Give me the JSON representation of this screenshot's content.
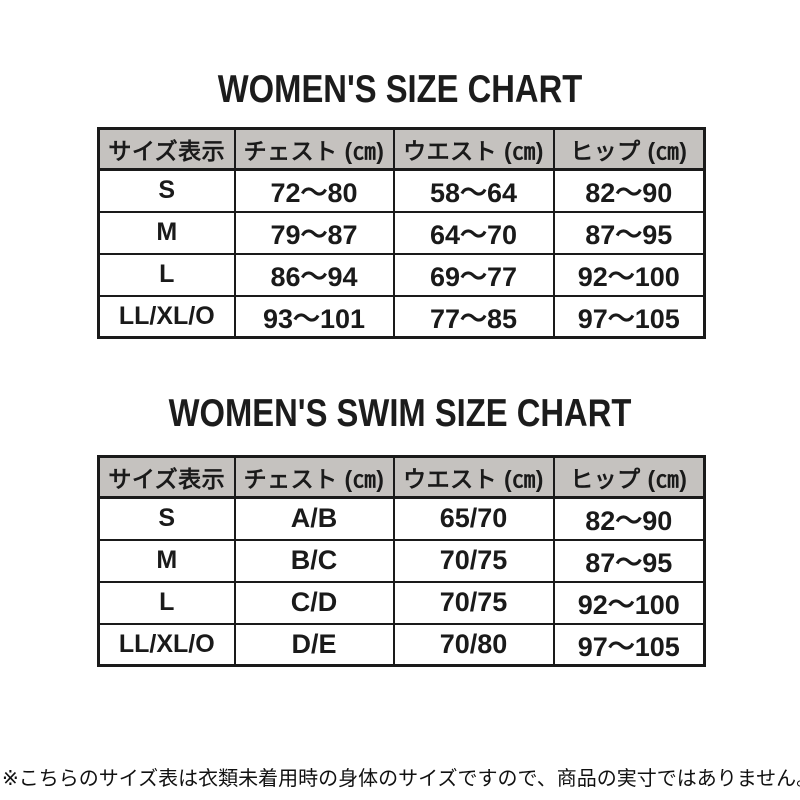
{
  "colors": {
    "background": "#ffffff",
    "text": "#1a1a1a",
    "table_border": "#1a1a1a",
    "header_row_bg": "#c5c2bf"
  },
  "size_chart": {
    "title": "WOMEN'S SIZE CHART",
    "headers": [
      "サイズ表示",
      "チェスト (㎝)",
      "ウエスト (㎝)",
      "ヒップ (㎝)"
    ],
    "rows": [
      [
        "S",
        "72～80",
        "58～64",
        "82～90"
      ],
      [
        "M",
        "79～87",
        "64～70",
        "87～95"
      ],
      [
        "L",
        "86～94",
        "69～77",
        "92～100"
      ],
      [
        "LL/XL/O",
        "93～101",
        "77～85",
        "97～105"
      ]
    ]
  },
  "swim_size_chart": {
    "title": "WOMEN'S SWIM SIZE CHART",
    "headers": [
      "サイズ表示",
      "チェスト (㎝)",
      "ウエスト (㎝)",
      "ヒップ (㎝)"
    ],
    "rows": [
      [
        "S",
        "A/B",
        "65/70",
        "82～90"
      ],
      [
        "M",
        "B/C",
        "70/75",
        "87～95"
      ],
      [
        "L",
        "C/D",
        "70/75",
        "92～100"
      ],
      [
        "LL/XL/O",
        "D/E",
        "70/80",
        "97～105"
      ]
    ]
  },
  "footnote": "※こちらのサイズ表は衣類未着用時の身体のサイズですので、商品の実寸ではありません。"
}
